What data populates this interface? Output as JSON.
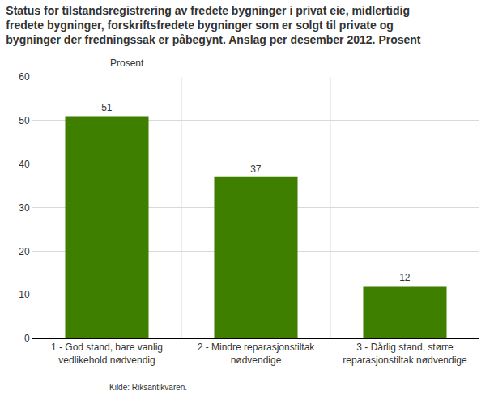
{
  "chart_data": {
    "type": "bar",
    "title": "Status for tilstandsregistrering av fredete bygninger i privat eie, midlertidig fredete bygninger, forskriftsfredete bygninger som er solgt til private og bygninger der fredningssak er påbegynt. Anslag per desember 2012. Prosent",
    "y_label": "Prosent",
    "source": "Kilde: Riksantikvaren.",
    "categories": [
      "1 - God stand, bare vanlig vedlikehold nødvendig",
      "2 - Mindre reparasjonstiltak nødvendige",
      "3 - Dårlig stand, større reparasjonstiltak nødvendige"
    ],
    "values": [
      51,
      37,
      12
    ],
    "color": "#3f7f00",
    "ylim": [
      0,
      60
    ],
    "yticks": [
      0,
      10,
      20,
      30,
      40,
      50,
      60
    ],
    "grid": true,
    "data_labels": true
  }
}
